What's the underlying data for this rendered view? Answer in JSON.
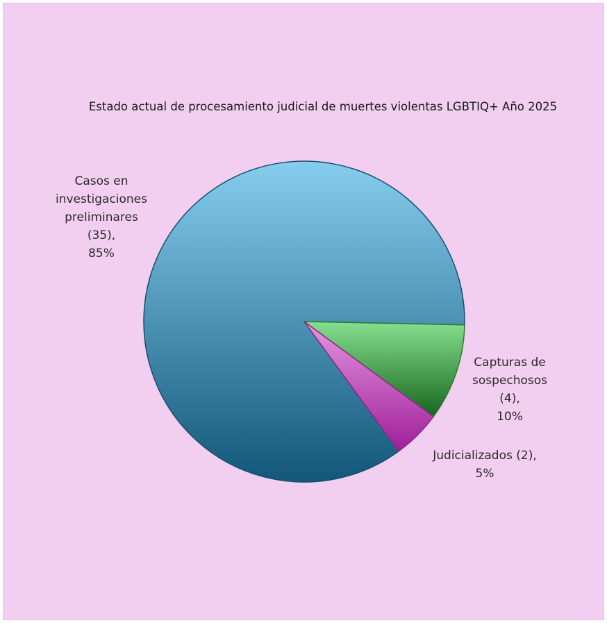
{
  "chart_data": {
    "type": "pie",
    "title": "Estado actual de procesamiento judicial de muertes violentas LGBTIQ+  Año 2025",
    "slices": [
      {
        "label": "Casos en investigaciones preliminares",
        "value": 35,
        "percent": 85,
        "display": "Casos en\ninvestigaciones\npreliminares\n(35),\n85%",
        "color_top": "#86cdee",
        "color_bottom": "#125779",
        "stroke": "#1b4f6e"
      },
      {
        "label": "Capturas de sospechosos",
        "value": 4,
        "percent": 10,
        "display": "Capturas de\nsospechosos\n(4),\n10%",
        "color_top": "#86e08e",
        "color_bottom": "#17661e",
        "stroke": "#2f7a33"
      },
      {
        "label": "Judicializados",
        "value": 2,
        "percent": 5,
        "display": "Judicializados (2),\n5%",
        "color_top": "#e596e0",
        "color_bottom": "#9f1f99",
        "stroke": "#8a2a86"
      }
    ],
    "legend": "none",
    "background": "#f2cff0"
  }
}
